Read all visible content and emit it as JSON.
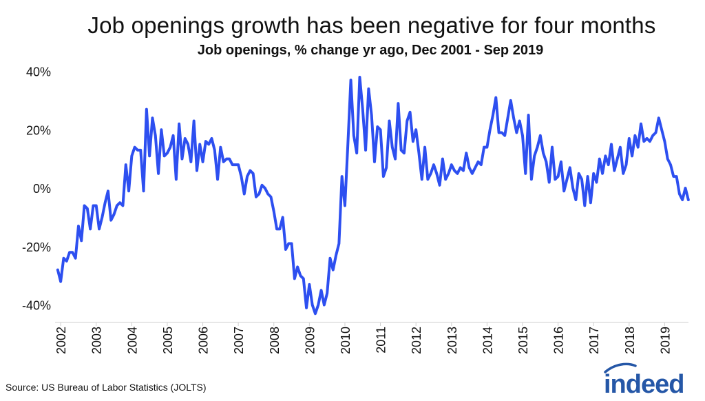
{
  "chart_data": {
    "type": "line",
    "title": "Job openings growth has been negative for four months",
    "subtitle": "Job openings, % change yr ago, Dec 2001 - Sep 2019",
    "xlabel": "",
    "ylabel": "",
    "ylim": [
      -46,
      42
    ],
    "y_ticks": [
      40,
      20,
      0,
      -20,
      -40
    ],
    "y_tick_labels": [
      "40%",
      "20%",
      "0%",
      "-20%",
      "-40%"
    ],
    "x_range": [
      2001.92,
      2019.67
    ],
    "x_ticks": [
      2002,
      2003,
      2004,
      2005,
      2006,
      2007,
      2008,
      2009,
      2010,
      2011,
      2012,
      2013,
      2014,
      2015,
      2016,
      2017,
      2018,
      2019
    ],
    "x_tick_labels": [
      "2002",
      "2003",
      "2004",
      "2005",
      "2006",
      "2007",
      "2008",
      "2009",
      "2010",
      "2011",
      "2012",
      "2013",
      "2014",
      "2015",
      "2016",
      "2017",
      "2018",
      "2019"
    ],
    "grid": false,
    "series": [
      {
        "name": "Job openings, % change yr ago",
        "color": "#2d4ff0",
        "start": 2001.917,
        "step": 0.08333,
        "values": [
          -28,
          -32,
          -24,
          -25,
          -22,
          -22,
          -24,
          -13,
          -18,
          -6,
          -7,
          -14,
          -6,
          -6,
          -14,
          -10,
          -5,
          -1,
          -11,
          -9,
          -6,
          -5,
          -6,
          8,
          -1,
          11,
          14,
          13,
          13,
          -1,
          27,
          11,
          24,
          18,
          5,
          20,
          11,
          12,
          14,
          18,
          3,
          22,
          10,
          17,
          15,
          9,
          23,
          6,
          15,
          9,
          16,
          15,
          17,
          13,
          3,
          14,
          9,
          10,
          10,
          8,
          8,
          8,
          4,
          -2,
          4,
          6,
          5,
          -3,
          -2,
          1,
          0,
          -2,
          -3,
          -8,
          -14,
          -14,
          -10,
          -21,
          -19,
          -19,
          -31,
          -27,
          -30,
          -31,
          -41,
          -33,
          -40,
          -43,
          -40,
          -35,
          -40,
          -36,
          -24,
          -28,
          -23,
          -19,
          4,
          -6,
          15,
          37,
          18,
          12,
          38,
          27,
          13,
          34,
          25,
          9,
          21,
          20,
          4,
          7,
          23,
          14,
          10,
          29,
          13,
          12,
          23,
          26,
          16,
          20,
          12,
          3,
          14,
          3,
          5,
          8,
          5,
          1,
          10,
          3,
          5,
          8,
          6,
          5,
          7,
          6,
          12,
          7,
          5,
          7,
          9,
          8,
          14,
          14,
          20,
          25,
          31,
          19,
          19,
          18,
          24,
          30,
          24,
          19,
          23,
          18,
          5,
          25,
          3,
          11,
          14,
          18,
          12,
          9,
          2,
          14,
          3,
          4,
          9,
          -1,
          3,
          7,
          0,
          -4,
          5,
          3,
          -6,
          4,
          -5,
          5,
          2,
          10,
          5,
          11,
          8,
          15,
          6,
          10,
          14,
          5,
          8,
          17,
          11,
          18,
          14,
          22,
          16,
          17,
          16,
          18,
          19,
          24,
          20,
          16,
          10,
          8,
          4,
          4,
          -2,
          -4,
          0,
          -4
        ]
      }
    ]
  },
  "footer": {
    "source": "Source: US Bureau of Labor Statistics (JOLTS)",
    "logo_text": "indeed"
  }
}
